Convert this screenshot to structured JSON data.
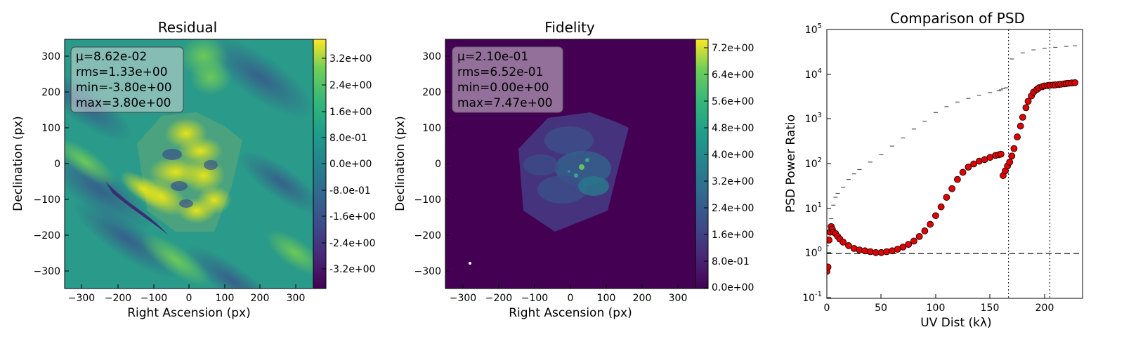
{
  "figure": {
    "residual": {
      "title": "Residual",
      "xlabel": "Right Ascension (px)",
      "ylabel": "Declination (px)",
      "xticks": [
        "−300",
        "−200",
        "−100",
        "0",
        "100",
        "200",
        "300"
      ],
      "yticks": [
        "300",
        "200",
        "100",
        "0",
        "−100",
        "−200",
        "−300"
      ],
      "stats": [
        "μ=8.62e-02",
        "rms=1.33e+00",
        "min=-3.80e+00",
        "max=3.80e+00"
      ],
      "colorbar_ticks": [
        "3.2e+00",
        "2.4e+00",
        "1.6e+00",
        "8.0e-01",
        "0.0e+00",
        "-8.0e-01",
        "-1.6e+00",
        "-2.4e+00",
        "-3.2e+00"
      ],
      "colormap": "viridis"
    },
    "fidelity": {
      "title": "Fidelity",
      "xlabel": "Right Ascension (px)",
      "ylabel": "Declination (px)",
      "xticks": [
        "−300",
        "−200",
        "−100",
        "0",
        "100",
        "200",
        "300"
      ],
      "yticks": [
        "300",
        "200",
        "100",
        "0",
        "−100",
        "−200",
        "−300"
      ],
      "stats": [
        "μ=2.10e-01",
        "rms=6.52e-01",
        "min=0.00e+00",
        "max=7.47e+00"
      ],
      "colorbar_ticks": [
        "7.2e+00",
        "6.4e+00",
        "5.6e+00",
        "4.8e+00",
        "4.0e+00",
        "3.2e+00",
        "2.4e+00",
        "1.6e+00",
        "8.0e-01",
        "0.0e+00"
      ],
      "colormap": "viridis"
    },
    "psd": {
      "title": "Comparison of PSD",
      "xlabel": "UV Dist (kλ)",
      "ylabel": "PSD Power Ratio",
      "xticks": [
        "0",
        "50",
        "100",
        "150",
        "200"
      ],
      "yticks": [
        {
          "base": "10",
          "exp": "5"
        },
        {
          "base": "10",
          "exp": "4"
        },
        {
          "base": "10",
          "exp": "3"
        },
        {
          "base": "10",
          "exp": "2"
        },
        {
          "base": "10",
          "exp": "1"
        },
        {
          "base": "10",
          "exp": "0"
        },
        {
          "base": "10",
          "exp": "-1"
        }
      ]
    }
  },
  "chart_data": [
    {
      "type": "heatmap",
      "title": "Residual",
      "xlabel": "Right Ascension (px)",
      "ylabel": "Declination (px)",
      "xlim": [
        -350,
        350
      ],
      "ylim": [
        -350,
        350
      ],
      "colorbar_range": [
        -3.8,
        3.8
      ],
      "colormap": "viridis",
      "stats": {
        "mean": 0.0862,
        "rms": 1.33,
        "min": -3.8,
        "max": 3.8
      }
    },
    {
      "type": "heatmap",
      "title": "Fidelity",
      "xlabel": "Right Ascension (px)",
      "ylabel": "Declination (px)",
      "xlim": [
        -350,
        350
      ],
      "ylim": [
        -350,
        350
      ],
      "colorbar_range": [
        0,
        7.47
      ],
      "colormap": "viridis",
      "stats": {
        "mean": 0.21,
        "rms": 0.652,
        "min": 0.0,
        "max": 7.47
      }
    },
    {
      "type": "scatter",
      "title": "Comparison of PSD",
      "xlabel": "UV Dist (kλ)",
      "ylabel": "PSD Power Ratio",
      "xlim": [
        0,
        235
      ],
      "ylim": [
        0.1,
        100000
      ],
      "yscale": "log",
      "reference_lines": {
        "horizontal_y": 1,
        "vertical_x": [
          167,
          205
        ]
      },
      "series": [
        {
          "style": "gray-horizontal-markers",
          "x": [
            0,
            2,
            4,
            6,
            8,
            10,
            15,
            20,
            25,
            30,
            40,
            50,
            60,
            70,
            80,
            90,
            100,
            110,
            120,
            130,
            140,
            150,
            158,
            160,
            162,
            165,
            170,
            180,
            190,
            200,
            210,
            220,
            228
          ],
          "y": [
            1.5,
            3,
            6,
            12,
            18,
            22,
            30,
            45,
            60,
            75,
            110,
            160,
            250,
            380,
            600,
            900,
            1400,
            1900,
            2400,
            2900,
            3400,
            3900,
            4300,
            4500,
            4800,
            5000,
            22000,
            30000,
            35000,
            38000,
            40000,
            42000,
            43000
          ]
        },
        {
          "style": "red-circles",
          "x": [
            0,
            1,
            2,
            3,
            4,
            5,
            6,
            8,
            10,
            12,
            15,
            20,
            25,
            30,
            35,
            40,
            45,
            50,
            55,
            60,
            65,
            70,
            75,
            80,
            85,
            90,
            95,
            100,
            105,
            110,
            115,
            120,
            125,
            130,
            135,
            140,
            145,
            150,
            155,
            158,
            160,
            162,
            164,
            166,
            168,
            170,
            172,
            175,
            178,
            180,
            183,
            185,
            188,
            190,
            193,
            195,
            198,
            200,
            203,
            205,
            208,
            210,
            213,
            215,
            218,
            220,
            222,
            225,
            228
          ],
          "y": [
            0.4,
            0.5,
            2.0,
            3.0,
            4.0,
            3.5,
            3.0,
            2.8,
            2.4,
            2.1,
            1.8,
            1.5,
            1.3,
            1.2,
            1.15,
            1.1,
            1.05,
            1.05,
            1.1,
            1.15,
            1.25,
            1.4,
            1.6,
            1.9,
            2.4,
            3.2,
            4.5,
            7,
            11,
            18,
            28,
            45,
            65,
            85,
            100,
            115,
            125,
            140,
            155,
            160,
            165,
            55,
            70,
            90,
            110,
            150,
            220,
            400,
            700,
            1100,
            1800,
            2500,
            3300,
            4000,
            4600,
            5000,
            5300,
            5500,
            5600,
            5700,
            5750,
            5800,
            5900,
            6000,
            6100,
            6200,
            6300,
            6400,
            6500
          ]
        }
      ]
    }
  ]
}
